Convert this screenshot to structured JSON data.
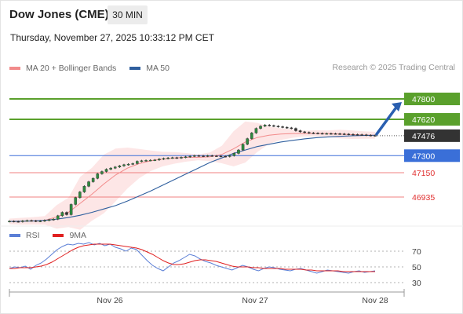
{
  "header": {
    "title": "Dow Jones (CME)",
    "timeframe": "30 MIN",
    "datetime": "Thursday, November 27, 2025 10:33:12 PM CET"
  },
  "legend": {
    "items": [
      {
        "label": "MA 20 + Bollinger Bands",
        "color": "#f28b8b"
      },
      {
        "label": "MA 50",
        "color": "#2f5f9e"
      }
    ],
    "credit": "Research © 2025 Trading Central"
  },
  "rsi_legend": {
    "items": [
      {
        "label": "RSI",
        "color": "#5b7fd6"
      },
      {
        "label": "9MA",
        "color": "#e02020"
      }
    ]
  },
  "chart_data": [
    {
      "type": "line",
      "title": "",
      "x_ticks": [
        "Nov 26",
        "Nov 27",
        "Nov 28"
      ],
      "ylim": [
        46700,
        47980
      ],
      "current_price": {
        "value": 47476,
        "color": "#333333"
      },
      "levels": [
        {
          "value": 47800,
          "label": "47800",
          "kind": "target",
          "color": "#5aa02c"
        },
        {
          "value": 47620,
          "label": "47620",
          "kind": "target",
          "color": "#5aa02c"
        },
        {
          "value": 47300,
          "label": "47300",
          "kind": "pivot",
          "color": "#3a6fd8"
        },
        {
          "value": 47150,
          "label": "47150",
          "kind": "support",
          "color": "#f08080"
        },
        {
          "value": 46935,
          "label": "46935",
          "kind": "support",
          "color": "#f08080"
        }
      ],
      "series": [
        {
          "name": "MA 20 + Bollinger Bands",
          "color": "#f28b8b",
          "values": [
            46720,
            46722,
            46725,
            46730,
            46760,
            46800,
            46880,
            46960,
            47050,
            47130,
            47190,
            47230,
            47255,
            47270,
            47280,
            47285,
            47285,
            47290,
            47310,
            47360,
            47420,
            47460,
            47480,
            47490,
            47495,
            47495,
            47496,
            47495,
            47490,
            47485,
            47482,
            47480
          ]
        },
        {
          "name": "MA 50",
          "color": "#2f5f9e",
          "values": [
            46720,
            46722,
            46725,
            46730,
            46740,
            46755,
            46775,
            46800,
            46830,
            46860,
            46900,
            46945,
            46990,
            47040,
            47090,
            47140,
            47190,
            47240,
            47280,
            47320,
            47350,
            47380,
            47400,
            47420,
            47435,
            47448,
            47458,
            47465,
            47470,
            47475,
            47478,
            47480
          ]
        }
      ],
      "candles_close": [
        46722,
        46720,
        46718,
        46725,
        46728,
        46726,
        46722,
        46724,
        46730,
        46735,
        46740,
        46770,
        46800,
        46780,
        46870,
        46930,
        46980,
        47030,
        47070,
        47100,
        47140,
        47160,
        47180,
        47190,
        47200,
        47210,
        47220,
        47225,
        47230,
        47250,
        47255,
        47258,
        47260,
        47262,
        47270,
        47275,
        47280,
        47282,
        47280,
        47285,
        47290,
        47295,
        47300,
        47298,
        47295,
        47300,
        47298,
        47296,
        47294,
        47292,
        47300,
        47320,
        47350,
        47400,
        47450,
        47500,
        47540,
        47560,
        47570,
        47565,
        47560,
        47555,
        47550,
        47545,
        47540,
        47520,
        47510,
        47505,
        47500,
        47498,
        47496,
        47495,
        47495,
        47494,
        47493,
        47492,
        47490,
        47488,
        47486,
        47485,
        47484,
        47480,
        47478,
        47476
      ]
    },
    {
      "type": "line",
      "title": "",
      "y_ticks": [
        70,
        50,
        30
      ],
      "ylim": [
        20,
        80
      ],
      "series": [
        {
          "name": "RSI",
          "color": "#5b7fd6",
          "values": [
            48,
            50,
            49,
            51,
            47,
            52,
            55,
            60,
            66,
            72,
            76,
            79,
            78,
            80,
            79,
            81,
            78,
            80,
            77,
            79,
            75,
            73,
            70,
            74,
            72,
            65,
            58,
            52,
            48,
            45,
            50,
            55,
            58,
            62,
            66,
            64,
            60,
            57,
            55,
            52,
            50,
            48,
            46,
            49,
            52,
            50,
            47,
            45,
            48,
            50,
            49,
            47,
            46,
            45,
            47,
            48,
            46,
            44,
            42,
            44,
            46,
            45,
            44,
            43,
            42,
            44,
            45,
            43,
            44,
            45
          ]
        },
        {
          "name": "9MA",
          "color": "#e02020",
          "values": [
            48,
            48,
            49,
            49,
            49,
            50,
            51,
            53,
            56,
            60,
            64,
            68,
            72,
            75,
            77,
            78,
            79,
            79,
            79,
            79,
            78,
            77,
            76,
            75,
            74,
            72,
            69,
            66,
            62,
            58,
            55,
            53,
            53,
            54,
            56,
            58,
            59,
            59,
            58,
            57,
            55,
            53,
            51,
            50,
            50,
            50,
            49,
            49,
            48,
            48,
            48,
            48,
            47,
            47,
            47,
            47,
            46,
            46,
            45,
            45,
            45,
            45,
            45,
            44,
            44,
            44,
            44,
            44,
            44,
            44
          ]
        }
      ]
    }
  ]
}
